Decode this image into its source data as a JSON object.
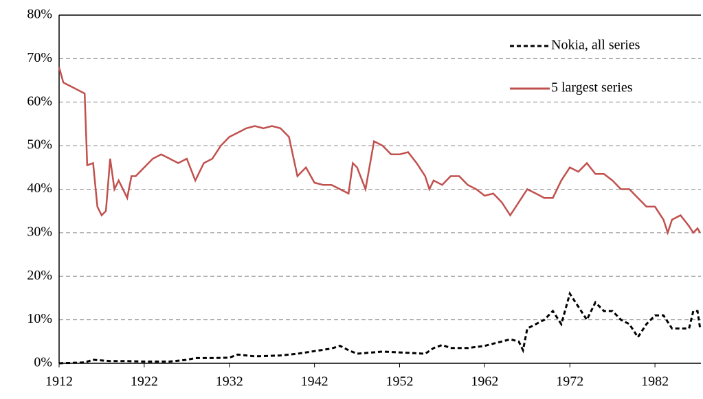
{
  "chart_data": {
    "type": "line",
    "xlim": [
      1912,
      1987.4
    ],
    "xticks": [
      1912,
      1922,
      1932,
      1942,
      1952,
      1962,
      1972,
      1982
    ],
    "ylim": [
      0,
      80
    ],
    "yticks": [
      {
        "value": 0,
        "label": "0%"
      },
      {
        "value": 10,
        "label": "10%"
      },
      {
        "value": 20,
        "label": "20%"
      },
      {
        "value": 30,
        "label": "30%"
      },
      {
        "value": 40,
        "label": "40%"
      },
      {
        "value": 50,
        "label": "50%"
      },
      {
        "value": 60,
        "label": "60%"
      },
      {
        "value": 70,
        "label": "70%"
      },
      {
        "value": 80,
        "label": "80%"
      }
    ],
    "grid": true,
    "legend": "top-right",
    "series": [
      {
        "name": "Nokia, all series",
        "color": "#000000",
        "dashed": true,
        "x": [
          1912,
          1915,
          1916,
          1918,
          1920,
          1922,
          1925,
          1927,
          1928,
          1930,
          1932,
          1933,
          1935,
          1938,
          1940,
          1942,
          1944,
          1945,
          1946,
          1947,
          1950,
          1953,
          1955,
          1956,
          1957,
          1958,
          1960,
          1962,
          1964,
          1965,
          1966,
          1966.5,
          1967,
          1968,
          1969,
          1970,
          1971,
          1972,
          1973,
          1974,
          1975,
          1976,
          1977,
          1978,
          1979,
          1980,
          1981,
          1982,
          1983,
          1984,
          1985,
          1986,
          1986.5,
          1987,
          1987.3
        ],
        "values": [
          0,
          0.2,
          0.8,
          0.5,
          0.5,
          0.4,
          0.4,
          0.8,
          1.2,
          1.2,
          1.3,
          2,
          1.6,
          1.8,
          2.2,
          2.8,
          3.4,
          4,
          3,
          2.2,
          2.7,
          2.4,
          2.2,
          3.5,
          4.2,
          3.5,
          3.5,
          4,
          5,
          5.5,
          5,
          3,
          8,
          9,
          10,
          12,
          9,
          16,
          13,
          10,
          14,
          12,
          12,
          10,
          9,
          6,
          9,
          11,
          11,
          8,
          8,
          8,
          12,
          12,
          8
        ]
      },
      {
        "name": "5 largest series",
        "color": "#c0504d",
        "dashed": false,
        "x": [
          1912,
          1912.5,
          1913,
          1914,
          1915,
          1915.3,
          1916,
          1916.5,
          1917,
          1917.5,
          1918,
          1918.5,
          1919,
          1920,
          1920.5,
          1921,
          1922,
          1923,
          1924,
          1925,
          1926,
          1927,
          1928,
          1929,
          1930,
          1931,
          1932,
          1933,
          1934,
          1935,
          1936,
          1937,
          1938,
          1939,
          1940,
          1941,
          1942,
          1943,
          1944,
          1945,
          1946,
          1946.5,
          1947,
          1948,
          1949,
          1950,
          1951,
          1952,
          1953,
          1954,
          1955,
          1955.5,
          1956,
          1957,
          1958,
          1959,
          1960,
          1961,
          1962,
          1963,
          1964,
          1965,
          1966,
          1967,
          1968,
          1969,
          1970,
          1971,
          1972,
          1973,
          1974,
          1975,
          1976,
          1977,
          1978,
          1979,
          1980,
          1981,
          1982,
          1983,
          1983.5,
          1984,
          1985,
          1986,
          1986.5,
          1987,
          1987.3
        ],
        "values": [
          68,
          64.5,
          64,
          63,
          62,
          45.5,
          46,
          36,
          34,
          35,
          47,
          40,
          42,
          38,
          43,
          43,
          45,
          47,
          48,
          47,
          46,
          47,
          42,
          46,
          47,
          50,
          52,
          53,
          54,
          54.5,
          54,
          54.5,
          54,
          52,
          43,
          45,
          41.5,
          41,
          41,
          40,
          39,
          46,
          45,
          40,
          51,
          50,
          48,
          48,
          48.5,
          46,
          43,
          40,
          42,
          41,
          43,
          43,
          41,
          40,
          38.5,
          39,
          37,
          34,
          37,
          40,
          39,
          38,
          38,
          42,
          45,
          44,
          46,
          43.5,
          43.5,
          42,
          40,
          40,
          38,
          36,
          36,
          33,
          30,
          33,
          34,
          31.5,
          30,
          31,
          30
        ]
      }
    ]
  }
}
